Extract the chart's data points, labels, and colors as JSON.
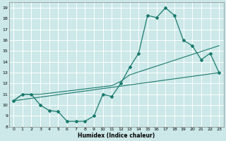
{
  "xlabel": "Humidex (Indice chaleur)",
  "bg_color": "#cce8e8",
  "grid_color": "#ffffff",
  "line_color": "#1a7a6e",
  "xlim": [
    -0.5,
    23.5
  ],
  "ylim": [
    8,
    19.5
  ],
  "xticks": [
    0,
    1,
    2,
    3,
    4,
    5,
    6,
    7,
    8,
    9,
    10,
    11,
    12,
    13,
    14,
    15,
    16,
    17,
    18,
    19,
    20,
    21,
    22,
    23
  ],
  "yticks": [
    8,
    9,
    10,
    11,
    12,
    13,
    14,
    15,
    16,
    17,
    18,
    19
  ],
  "line1_x": [
    0,
    1,
    2,
    3,
    4,
    5,
    6,
    7,
    8,
    9,
    10,
    11,
    12,
    13,
    14,
    15,
    16,
    17,
    18,
    19,
    20,
    21,
    22,
    23
  ],
  "line1_y": [
    10.4,
    11.0,
    11.0,
    10.0,
    9.5,
    9.4,
    8.5,
    8.5,
    8.5,
    9.0,
    11.0,
    10.8,
    12.0,
    13.5,
    14.8,
    18.3,
    18.1,
    19.0,
    18.3,
    16.0,
    15.5,
    14.2,
    14.8,
    13.0
  ],
  "line2_x": [
    0,
    1,
    2,
    3,
    11,
    12,
    13,
    23
  ],
  "line2_y": [
    10.4,
    11.0,
    11.0,
    11.0,
    11.8,
    12.2,
    12.8,
    15.5
  ],
  "line3_x": [
    0,
    23
  ],
  "line3_y": [
    10.4,
    13.0
  ]
}
